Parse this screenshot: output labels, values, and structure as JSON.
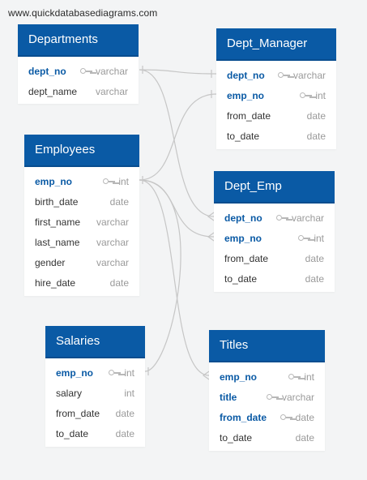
{
  "site": {
    "watermark": "www.quickdatabasediagrams.com"
  },
  "tables": {
    "departments": {
      "title": "Departments",
      "fields": [
        {
          "name": "dept_no",
          "type": "varchar",
          "key": true
        },
        {
          "name": "dept_name",
          "type": "varchar",
          "key": false
        }
      ]
    },
    "dept_manager": {
      "title": "Dept_Manager",
      "fields": [
        {
          "name": "dept_no",
          "type": "varchar",
          "key": true
        },
        {
          "name": "emp_no",
          "type": "int",
          "key": true
        },
        {
          "name": "from_date",
          "type": "date",
          "key": false
        },
        {
          "name": "to_date",
          "type": "date",
          "key": false
        }
      ]
    },
    "employees": {
      "title": "Employees",
      "fields": [
        {
          "name": "emp_no",
          "type": "int",
          "key": true
        },
        {
          "name": "birth_date",
          "type": "date",
          "key": false
        },
        {
          "name": "first_name",
          "type": "varchar",
          "key": false
        },
        {
          "name": "last_name",
          "type": "varchar",
          "key": false
        },
        {
          "name": "gender",
          "type": "varchar",
          "key": false
        },
        {
          "name": "hire_date",
          "type": "date",
          "key": false
        }
      ]
    },
    "dept_emp": {
      "title": "Dept_Emp",
      "fields": [
        {
          "name": "dept_no",
          "type": "varchar",
          "key": true
        },
        {
          "name": "emp_no",
          "type": "int",
          "key": true
        },
        {
          "name": "from_date",
          "type": "date",
          "key": false
        },
        {
          "name": "to_date",
          "type": "date",
          "key": false
        }
      ]
    },
    "salaries": {
      "title": "Salaries",
      "fields": [
        {
          "name": "emp_no",
          "type": "int",
          "key": true
        },
        {
          "name": "salary",
          "type": "int",
          "key": false
        },
        {
          "name": "from_date",
          "type": "date",
          "key": false
        },
        {
          "name": "to_date",
          "type": "date",
          "key": false
        }
      ]
    },
    "titles": {
      "title": "Titles",
      "fields": [
        {
          "name": "emp_no",
          "type": "int",
          "key": true
        },
        {
          "name": "title",
          "type": "varchar",
          "key": true
        },
        {
          "name": "from_date",
          "type": "date",
          "key": true
        },
        {
          "name": "to_date",
          "type": "date",
          "key": false
        }
      ]
    }
  },
  "colors": {
    "header": "#0a5aa5",
    "key_text": "#0a5aa5",
    "link": "#c8c8c8"
  }
}
